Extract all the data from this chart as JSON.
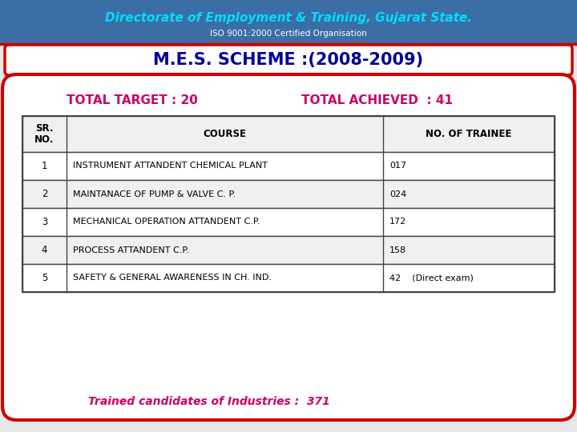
{
  "title": "M.E.S. SCHEME :(2008-2009)",
  "header_text": "Directorate of Employment & Training, Gujarat State.",
  "header_sub": "ISO 9001:2000 Certified Organisation",
  "header_bg": "#3a6ea5",
  "total_target_label": "TOTAL TARGET : 20",
  "total_achieved_label": "TOTAL ACHIEVED  : 41",
  "total_target_color": "#cc0066",
  "total_achieved_color": "#cc0066",
  "table_headers": [
    "SR.\nNO.",
    "COURSE",
    "NO. OF TRAINEE"
  ],
  "table_rows": [
    [
      "1",
      "INSTRUMENT ATTANDENT CHEMICAL PLANT",
      "017"
    ],
    [
      "2",
      "MAINTANACE OF PUMP & VALVE C. P.",
      "024"
    ],
    [
      "3",
      "MECHANICAL OPERATION ATTANDENT C.P.",
      "172"
    ],
    [
      "4",
      "PROCESS ATTANDENT C.P.",
      "158"
    ],
    [
      "5",
      "SAFETY & GENERAL AWARENESS IN CH. IND.",
      "42    (Direct exam)"
    ]
  ],
  "footer_text": "Trained candidates of Industries :  371",
  "footer_color": "#cc0066",
  "title_color": "#000099",
  "outer_bg": "#e8e8e8",
  "card_bg": "#ffffff",
  "card_border": "#cc0000",
  "table_border": "#444444",
  "row_alt_bg": "#f0f0f0",
  "row_bg": "#ffffff"
}
